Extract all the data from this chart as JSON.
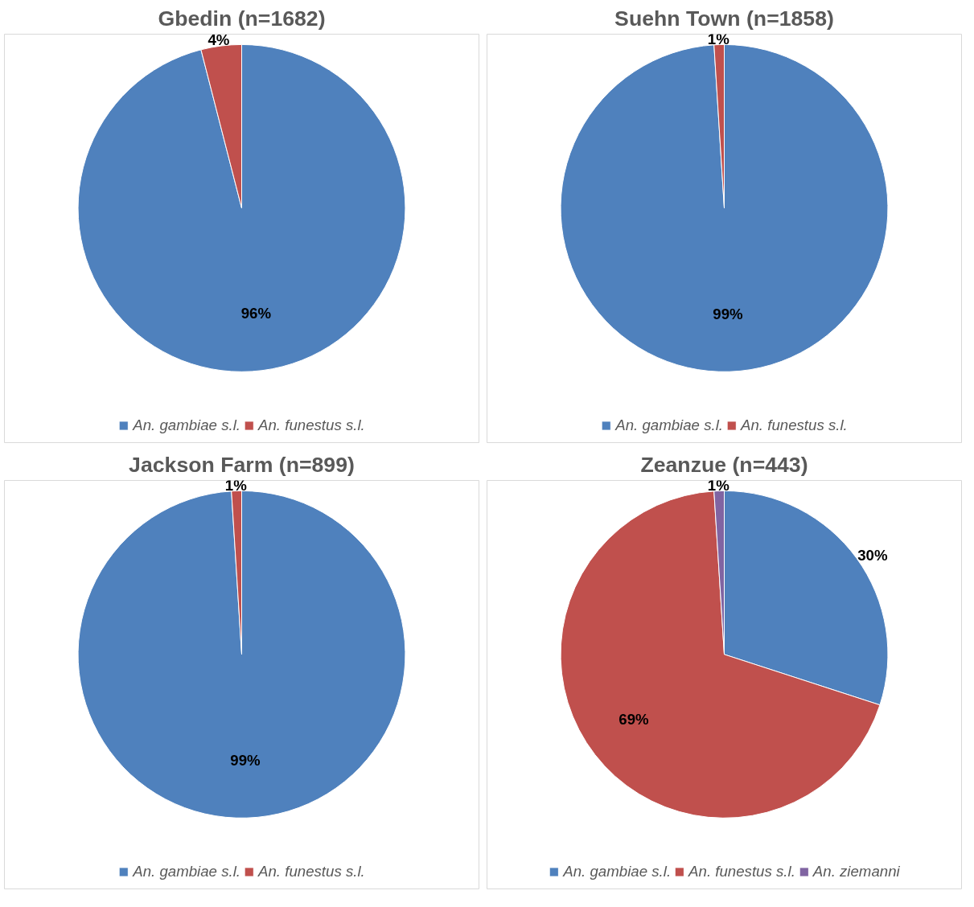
{
  "chart_data": [
    {
      "type": "pie",
      "title": "Gbedin (n=1682)",
      "categories": [
        "An. gambiae s.l.",
        "An. funestus s.l."
      ],
      "values": [
        96,
        4
      ],
      "value_labels": [
        "96%",
        "4%"
      ],
      "colors": [
        "#4f81bd",
        "#c0504d"
      ],
      "legend": "bottom"
    },
    {
      "type": "pie",
      "title": "Suehn Town (n=1858)",
      "categories": [
        "An. gambiae s.l.",
        "An. funestus s.l."
      ],
      "values": [
        99,
        1
      ],
      "value_labels": [
        "99%",
        "1%"
      ],
      "colors": [
        "#4f81bd",
        "#c0504d"
      ],
      "legend": "bottom"
    },
    {
      "type": "pie",
      "title": "Jackson Farm (n=899)",
      "categories": [
        "An. gambiae s.l.",
        "An. funestus s.l."
      ],
      "values": [
        99,
        1
      ],
      "value_labels": [
        "99%",
        "1%"
      ],
      "colors": [
        "#4f81bd",
        "#c0504d"
      ],
      "legend": "bottom"
    },
    {
      "type": "pie",
      "title": "Zeanzue (n=443)",
      "categories": [
        "An. gambiae s.l.",
        "An. funestus s.l.",
        "An. ziemanni"
      ],
      "values": [
        30,
        69,
        1
      ],
      "value_labels": [
        "30%",
        "69%",
        "1%"
      ],
      "colors": [
        "#4f81bd",
        "#c0504d",
        "#8064a2"
      ],
      "legend": "bottom"
    }
  ]
}
